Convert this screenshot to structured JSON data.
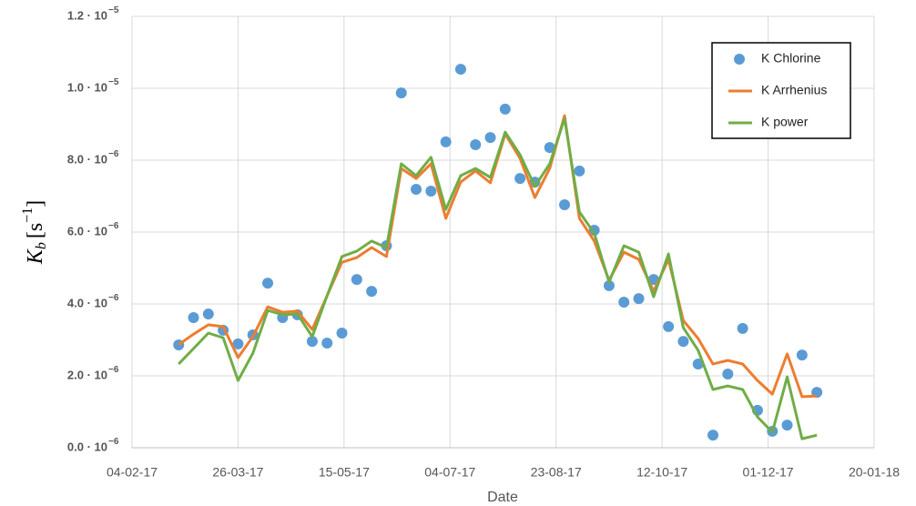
{
  "chart_data": {
    "type": "line",
    "xlabel": "Date",
    "ylabel": {
      "main": "K",
      "sub": "b",
      "open": "[s",
      "exp": "−1",
      "close": "]"
    },
    "x": [
      "2017-02-26",
      "2017-03-05",
      "2017-03-12",
      "2017-03-19",
      "2017-03-26",
      "2017-04-02",
      "2017-04-09",
      "2017-04-16",
      "2017-04-23",
      "2017-04-30",
      "2017-05-07",
      "2017-05-14",
      "2017-05-21",
      "2017-05-28",
      "2017-06-04",
      "2017-06-11",
      "2017-06-18",
      "2017-06-25",
      "2017-07-02",
      "2017-07-09",
      "2017-07-16",
      "2017-07-23",
      "2017-07-30",
      "2017-08-06",
      "2017-08-13",
      "2017-08-20",
      "2017-08-27",
      "2017-09-03",
      "2017-09-10",
      "2017-09-17",
      "2017-09-24",
      "2017-10-01",
      "2017-10-08",
      "2017-10-15",
      "2017-10-22",
      "2017-10-29",
      "2017-11-05",
      "2017-11-12",
      "2017-11-19",
      "2017-11-26",
      "2017-12-03",
      "2017-12-10",
      "2017-12-17",
      "2017-12-24"
    ],
    "series": [
      {
        "name": "K Chlorine",
        "style": "markers",
        "color": "#5b9bd5",
        "values": [
          2.86e-06,
          3.62e-06,
          3.72e-06,
          3.27e-06,
          2.89e-06,
          3.14e-06,
          4.58e-06,
          3.62e-06,
          3.7e-06,
          2.96e-06,
          2.91e-06,
          3.19e-06,
          4.68e-06,
          4.35e-06,
          5.62e-06,
          9.87e-06,
          7.19e-06,
          7.14e-06,
          8.51e-06,
          1.053e-05,
          8.43e-06,
          8.63e-06,
          9.42e-06,
          7.49e-06,
          7.39e-06,
          8.35e-06,
          6.76e-06,
          7.7e-06,
          6.05e-06,
          4.51e-06,
          4.05e-06,
          4.15e-06,
          4.68e-06,
          3.37e-06,
          2.96e-06,
          2.33e-06,
          3.5e-07,
          2.05e-06,
          3.32e-06,
          1.04e-06,
          4.6e-07,
          6.3e-07,
          2.58e-06,
          1.54e-06
        ]
      },
      {
        "name": "K Arrhenius",
        "style": "line",
        "color": "#ed7d31",
        "values": [
          2.87e-06,
          3.16e-06,
          3.42e-06,
          3.37e-06,
          2.51e-06,
          3.09e-06,
          3.92e-06,
          3.77e-06,
          3.8e-06,
          3.29e-06,
          4.23e-06,
          5.16e-06,
          5.29e-06,
          5.57e-06,
          5.32e-06,
          7.77e-06,
          7.49e-06,
          7.9e-06,
          6.38e-06,
          7.39e-06,
          7.7e-06,
          7.37e-06,
          8.73e-06,
          8.05e-06,
          6.96e-06,
          7.77e-06,
          9.24e-06,
          6.38e-06,
          5.75e-06,
          4.66e-06,
          5.44e-06,
          5.24e-06,
          4.35e-06,
          5.24e-06,
          3.54e-06,
          3.04e-06,
          2.33e-06,
          2.43e-06,
          2.33e-06,
          1.87e-06,
          1.49e-06,
          2.61e-06,
          1.42e-06,
          1.44e-06
        ]
      },
      {
        "name": "K power",
        "style": "line",
        "color": "#70ad47",
        "values": [
          2.33e-06,
          2.76e-06,
          3.19e-06,
          3.06e-06,
          1.87e-06,
          2.63e-06,
          3.82e-06,
          3.7e-06,
          3.72e-06,
          3.09e-06,
          4.23e-06,
          5.32e-06,
          5.47e-06,
          5.75e-06,
          5.57e-06,
          7.9e-06,
          7.57e-06,
          8.08e-06,
          6.63e-06,
          7.57e-06,
          7.77e-06,
          7.52e-06,
          8.78e-06,
          8.15e-06,
          7.27e-06,
          7.9e-06,
          9.16e-06,
          6.56e-06,
          5.97e-06,
          4.61e-06,
          5.62e-06,
          5.44e-06,
          4.2e-06,
          5.39e-06,
          3.34e-06,
          2.71e-06,
          1.62e-06,
          1.72e-06,
          1.62e-06,
          8.6e-07,
          4.3e-07,
          1.97e-06,
          2.5e-07,
          3.5e-07
        ]
      }
    ],
    "xlim": [
      "2017-02-04",
      "2018-01-20"
    ],
    "xticks": [
      {
        "value": "2017-02-04",
        "label": "04-02-17"
      },
      {
        "value": "2017-03-26",
        "label": "26-03-17"
      },
      {
        "value": "2017-05-15",
        "label": "15-05-17"
      },
      {
        "value": "2017-07-04",
        "label": "04-07-17"
      },
      {
        "value": "2017-08-23",
        "label": "23-08-17"
      },
      {
        "value": "2017-10-12",
        "label": "12-10-17"
      },
      {
        "value": "2017-12-01",
        "label": "01-12-17"
      },
      {
        "value": "2018-01-20",
        "label": "20-01-18"
      }
    ],
    "ylim": [
      0,
      1.2e-05
    ],
    "yticks": [
      {
        "value": 0,
        "label": "0.0 · 10",
        "exp": "−6"
      },
      {
        "value": 2e-06,
        "label": "2.0 · 10",
        "exp": "−6"
      },
      {
        "value": 4e-06,
        "label": "4.0 · 10",
        "exp": "−6"
      },
      {
        "value": 6e-06,
        "label": "6.0 · 10",
        "exp": "−6"
      },
      {
        "value": 8e-06,
        "label": "8.0 · 10",
        "exp": "−6"
      },
      {
        "value": 1e-05,
        "label": "1.0 · 10",
        "exp": "−5"
      },
      {
        "value": 1.2e-05,
        "label": "1.2 · 10",
        "exp": "−5"
      }
    ],
    "grid": true,
    "legend": "upper right"
  }
}
